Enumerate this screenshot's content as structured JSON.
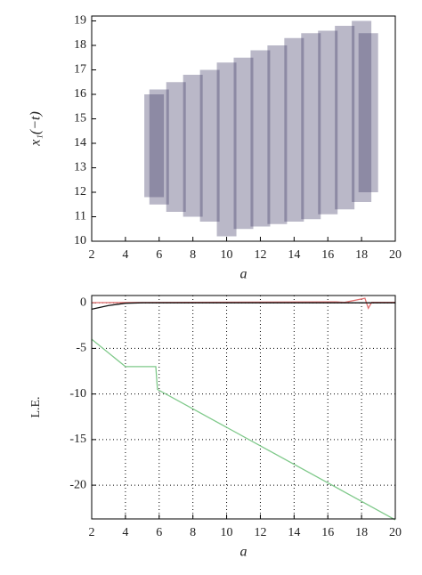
{
  "chart_data": [
    {
      "type": "range",
      "ylabel": "x₁(−t)",
      "xlabel": "a",
      "color": "#3a3560",
      "x": [
        5.7,
        6,
        7,
        8,
        9,
        10,
        11,
        12,
        13,
        14,
        15,
        16,
        17,
        18,
        18.4
      ],
      "low": [
        11.8,
        11.5,
        11.2,
        11,
        10.8,
        10.2,
        10.5,
        10.6,
        10.7,
        10.8,
        10.9,
        11.1,
        11.3,
        11.6,
        12
      ],
      "high": [
        16,
        16.2,
        16.5,
        16.8,
        17,
        17.3,
        17.5,
        17.8,
        18,
        18.3,
        18.5,
        18.6,
        18.8,
        19,
        18.5
      ],
      "xlim": [
        2,
        20
      ],
      "ylim": [
        10,
        19.2
      ],
      "xticks": [
        2,
        4,
        6,
        8,
        10,
        12,
        14,
        16,
        18,
        20
      ],
      "yticks": [
        10,
        11,
        12,
        13,
        14,
        15,
        16,
        17,
        18,
        19
      ],
      "grid": false
    },
    {
      "type": "line",
      "ylabel": "L.E.",
      "xlabel": "a",
      "series": [
        {
          "color": "#e07070",
          "x": [
            2,
            16.5,
            17,
            18.2,
            18.4,
            18.6,
            20
          ],
          "values": [
            0.02,
            0.1,
            0.05,
            0.5,
            -0.6,
            0.05,
            0.05
          ]
        },
        {
          "color": "#111111",
          "x": [
            2,
            3,
            4,
            5,
            6,
            10,
            20
          ],
          "values": [
            -0.7,
            -0.3,
            -0.05,
            0,
            0,
            0,
            0
          ]
        },
        {
          "color": "#7fc98a",
          "x": [
            2,
            4,
            5.8,
            5.9,
            20
          ],
          "values": [
            -4,
            -7,
            -7,
            -9.5,
            -23.8
          ]
        }
      ],
      "xlim": [
        2,
        20
      ],
      "ylim": [
        -23.7,
        0.8
      ],
      "xticks": [
        2,
        4,
        6,
        8,
        10,
        12,
        14,
        16,
        18,
        20
      ],
      "yticks": [
        0,
        -5,
        -10,
        -15,
        -20
      ],
      "grid": true
    }
  ]
}
